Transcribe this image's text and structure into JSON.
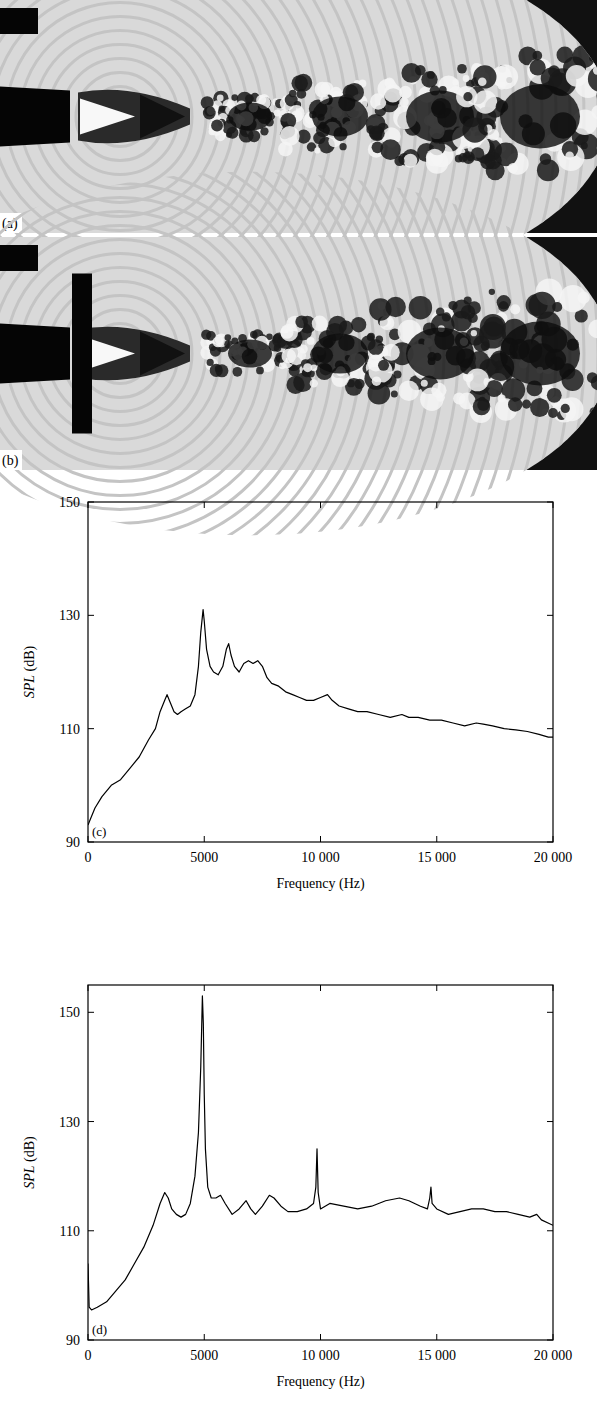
{
  "photos": [
    {
      "label": "(a)"
    },
    {
      "label": "(b)"
    }
  ],
  "chart_data": [
    {
      "type": "line",
      "annotations": [
        "(c)"
      ],
      "x_label": "Frequency (Hz)",
      "y_label": "SPL (dB)",
      "color": "#000000",
      "grid": false,
      "xlim": [
        0,
        20000
      ],
      "xticks": [
        0,
        5000,
        {
          "value": 10000,
          "label": "10 000"
        },
        {
          "value": 15000,
          "label": "15 000"
        },
        {
          "value": 20000,
          "label": "20 000"
        }
      ],
      "ylim": [
        90,
        150
      ],
      "yticks": [
        90,
        110,
        130,
        150
      ],
      "x": [
        0,
        100,
        300,
        600,
        1000,
        1400,
        1800,
        2200,
        2600,
        2900,
        3100,
        3300,
        3400,
        3550,
        3700,
        3850,
        4000,
        4200,
        4400,
        4600,
        4750,
        4850,
        4950,
        5000,
        5100,
        5250,
        5400,
        5600,
        5800,
        5950,
        6050,
        6150,
        6300,
        6500,
        6700,
        6900,
        7100,
        7300,
        7500,
        7700,
        7900,
        8200,
        8500,
        8800,
        9100,
        9400,
        9700,
        10000,
        10300,
        10500,
        10800,
        11200,
        11600,
        12000,
        12500,
        13000,
        13500,
        13800,
        14200,
        14700,
        15200,
        15700,
        16200,
        16700,
        17000,
        17400,
        17900,
        18400,
        18900,
        19400,
        19800,
        20000
      ],
      "values": [
        93,
        94,
        96,
        98,
        100,
        101,
        103,
        105,
        108,
        110,
        113,
        115,
        116,
        114.5,
        113,
        112.5,
        113,
        113.5,
        114,
        116,
        121,
        127,
        131,
        129,
        124,
        121,
        120,
        119.5,
        121,
        124,
        125,
        123,
        121,
        120,
        121.5,
        122,
        121.5,
        122,
        121,
        119,
        118,
        117.5,
        116.5,
        116,
        115.5,
        115,
        115,
        115.5,
        116,
        115,
        114,
        113.5,
        113,
        113,
        112.5,
        112,
        112.5,
        112,
        112,
        111.5,
        111.5,
        111,
        110.5,
        111,
        110.8,
        110.5,
        110,
        109.8,
        109.5,
        109,
        108.5,
        108.5
      ]
    },
    {
      "type": "line",
      "annotations": [
        "(d)"
      ],
      "x_label": "Frequency (Hz)",
      "y_label": "SPL (dB)",
      "color": "#000000",
      "grid": false,
      "xlim": [
        0,
        20000
      ],
      "xticks": [
        0,
        5000,
        {
          "value": 10000,
          "label": "10 000"
        },
        {
          "value": 15000,
          "label": "15 000"
        },
        {
          "value": 20000,
          "label": "20 000"
        }
      ],
      "ylim": [
        90,
        155
      ],
      "yticks": [
        90,
        110,
        130,
        150
      ],
      "x": [
        0,
        50,
        150,
        400,
        800,
        1200,
        1600,
        2000,
        2400,
        2800,
        3100,
        3300,
        3450,
        3600,
        3800,
        4000,
        4200,
        4400,
        4600,
        4750,
        4850,
        4920,
        4960,
        5000,
        5050,
        5150,
        5300,
        5500,
        5700,
        5900,
        6200,
        6500,
        6800,
        7000,
        7200,
        7500,
        7800,
        8000,
        8300,
        8600,
        9000,
        9400,
        9700,
        9800,
        9850,
        9900,
        10000,
        10400,
        11000,
        11600,
        12200,
        12800,
        13400,
        13800,
        14300,
        14600,
        14700,
        14750,
        14800,
        15000,
        15500,
        16000,
        16500,
        17000,
        17500,
        18000,
        18500,
        19000,
        19300,
        19500,
        20000
      ],
      "values": [
        104,
        96,
        95.5,
        96,
        97,
        99,
        101,
        104,
        107,
        111,
        115,
        117,
        116,
        114,
        113,
        112.5,
        113,
        115,
        120,
        128,
        140,
        153,
        148,
        135,
        125,
        118,
        116,
        116,
        116.5,
        115,
        113,
        114,
        115.5,
        114,
        113,
        114.5,
        116.5,
        116,
        114.5,
        113.5,
        113.5,
        114,
        115,
        118,
        125,
        117,
        114,
        115,
        114.5,
        114,
        114.5,
        115.5,
        116,
        115.5,
        114.5,
        114,
        116,
        118,
        115,
        114,
        113,
        113.5,
        114,
        114,
        113.5,
        113.5,
        113,
        112.5,
        113,
        112,
        111
      ]
    }
  ]
}
